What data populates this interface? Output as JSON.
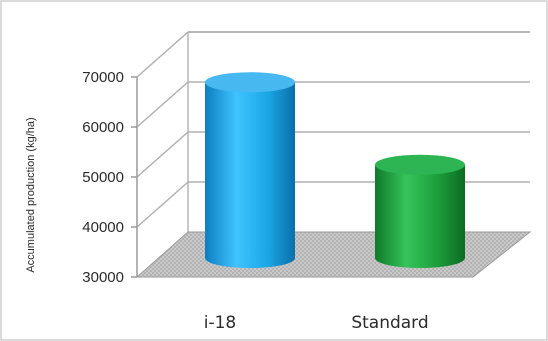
{
  "chart_data": {
    "type": "bar",
    "categories": [
      "i-18",
      "Standard"
    ],
    "values": [
      66500,
      50000
    ],
    "ylabel": "Accumulated production (kg/ha)",
    "ylim": [
      30000,
      70000
    ],
    "yticks": [
      "30000",
      "40000",
      "50000",
      "60000",
      "70000"
    ],
    "grid": true,
    "colors": [
      "#1aa6e6",
      "#1b9e3a"
    ]
  }
}
